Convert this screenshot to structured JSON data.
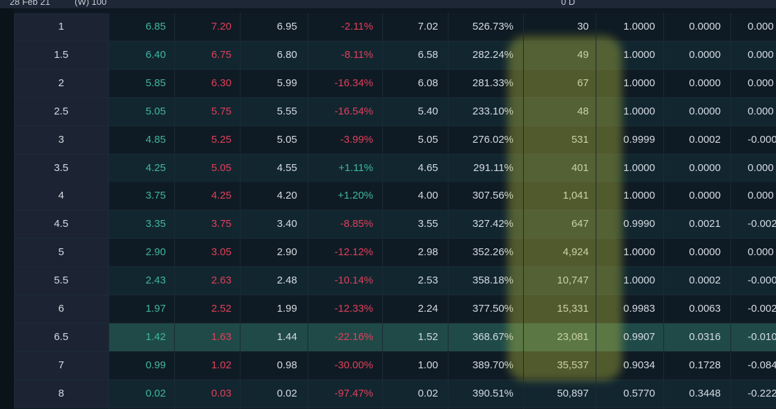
{
  "header": {
    "date": "28 Feb 21",
    "weekly": "(W) 100",
    "days": "0 D"
  },
  "table": {
    "rows": [
      [
        "1",
        "6.85",
        "7.20",
        "6.95",
        "-2.11%",
        "7.02",
        "526.73%",
        "30",
        "1.0000",
        "0.0000",
        "0.000"
      ],
      [
        "1.5",
        "6.40",
        "6.75",
        "6.80",
        "-8.11%",
        "6.58",
        "282.24%",
        "49",
        "1.0000",
        "0.0000",
        "0.000"
      ],
      [
        "2",
        "5.85",
        "6.30",
        "5.99",
        "-16.34%",
        "6.08",
        "281.33%",
        "67",
        "1.0000",
        "0.0000",
        "0.000"
      ],
      [
        "2.5",
        "5.05",
        "5.75",
        "5.55",
        "-16.54%",
        "5.40",
        "233.10%",
        "48",
        "1.0000",
        "0.0000",
        "0.000"
      ],
      [
        "3",
        "4.85",
        "5.25",
        "5.05",
        "-3.99%",
        "5.05",
        "276.02%",
        "531",
        "0.9999",
        "0.0002",
        "-0.000"
      ],
      [
        "3.5",
        "4.25",
        "5.05",
        "4.55",
        "+1.11%",
        "4.65",
        "291.11%",
        "401",
        "1.0000",
        "0.0000",
        "0.000"
      ],
      [
        "4",
        "3.75",
        "4.25",
        "4.20",
        "+1.20%",
        "4.00",
        "307.56%",
        "1,041",
        "1.0000",
        "0.0000",
        "0.000"
      ],
      [
        "4.5",
        "3.35",
        "3.75",
        "3.40",
        "-8.85%",
        "3.55",
        "327.42%",
        "647",
        "0.9990",
        "0.0021",
        "-0.002"
      ],
      [
        "5",
        "2.90",
        "3.05",
        "2.90",
        "-12.12%",
        "2.98",
        "352.26%",
        "4,924",
        "1.0000",
        "0.0000",
        "0.000"
      ],
      [
        "5.5",
        "2.43",
        "2.63",
        "2.48",
        "-10.14%",
        "2.53",
        "358.18%",
        "10,747",
        "1.0000",
        "0.0002",
        "-0.000"
      ],
      [
        "6",
        "1.97",
        "2.52",
        "1.99",
        "-12.33%",
        "2.24",
        "377.50%",
        "15,331",
        "0.9983",
        "0.0063",
        "-0.002"
      ],
      [
        "6.5",
        "1.42",
        "1.63",
        "1.44",
        "-22.16%",
        "1.52",
        "368.67%",
        "23,081",
        "0.9907",
        "0.0316",
        "-0.010"
      ],
      [
        "7",
        "0.99",
        "1.02",
        "0.98",
        "-30.00%",
        "1.00",
        "389.70%",
        "35,537",
        "0.9034",
        "0.1728",
        "-0.084"
      ],
      [
        "8",
        "0.02",
        "0.03",
        "0.02",
        "-97.47%",
        "0.02",
        "390.51%",
        "50,897",
        "0.5770",
        "0.3448",
        "-0.222"
      ]
    ]
  }
}
